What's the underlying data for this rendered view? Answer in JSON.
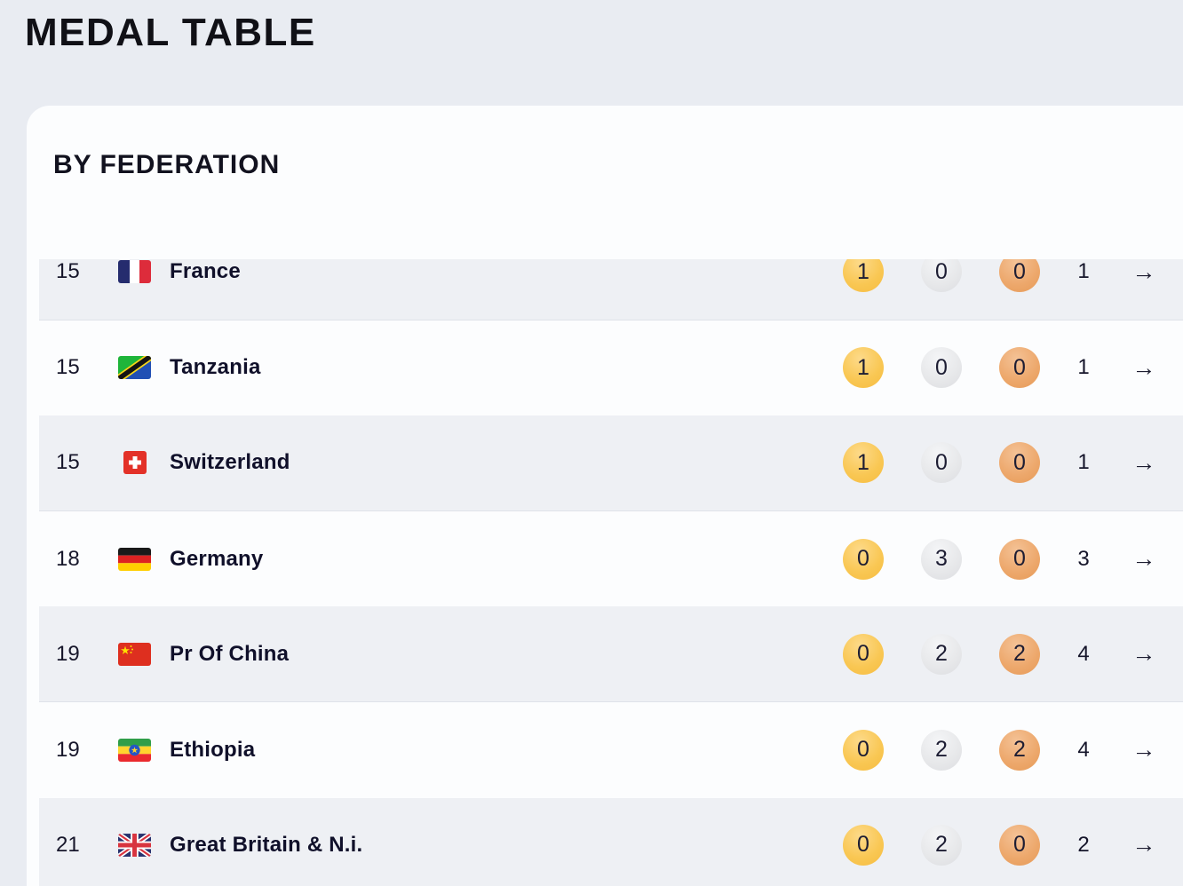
{
  "page": {
    "title": "MEDAL TABLE"
  },
  "card": {
    "subtitle": "BY FEDERATION"
  },
  "table": {
    "arrow_icon": "→",
    "rows": [
      {
        "rank": "15",
        "country": "France",
        "flag": "fr",
        "gold": "1",
        "silver": "0",
        "bronze": "0",
        "total": "1"
      },
      {
        "rank": "15",
        "country": "Tanzania",
        "flag": "tz",
        "gold": "1",
        "silver": "0",
        "bronze": "0",
        "total": "1"
      },
      {
        "rank": "15",
        "country": "Switzerland",
        "flag": "ch",
        "gold": "1",
        "silver": "0",
        "bronze": "0",
        "total": "1"
      },
      {
        "rank": "18",
        "country": "Germany",
        "flag": "de",
        "gold": "0",
        "silver": "3",
        "bronze": "0",
        "total": "3"
      },
      {
        "rank": "19",
        "country": "Pr Of China",
        "flag": "cn",
        "gold": "0",
        "silver": "2",
        "bronze": "2",
        "total": "4"
      },
      {
        "rank": "19",
        "country": "Ethiopia",
        "flag": "et",
        "gold": "0",
        "silver": "2",
        "bronze": "2",
        "total": "4"
      },
      {
        "rank": "21",
        "country": "Great Britain & N.i.",
        "flag": "gb",
        "gold": "0",
        "silver": "2",
        "bronze": "0",
        "total": "2"
      }
    ]
  },
  "colors": {
    "page_background": "#e9ecf2",
    "card_background": "#fcfdfe",
    "shaded_row": "#eef0f4",
    "gold_badge": "#f9c753",
    "silver_badge": "#e7e8ea",
    "bronze_badge": "#eda86c",
    "text_dark": "#10102a"
  }
}
